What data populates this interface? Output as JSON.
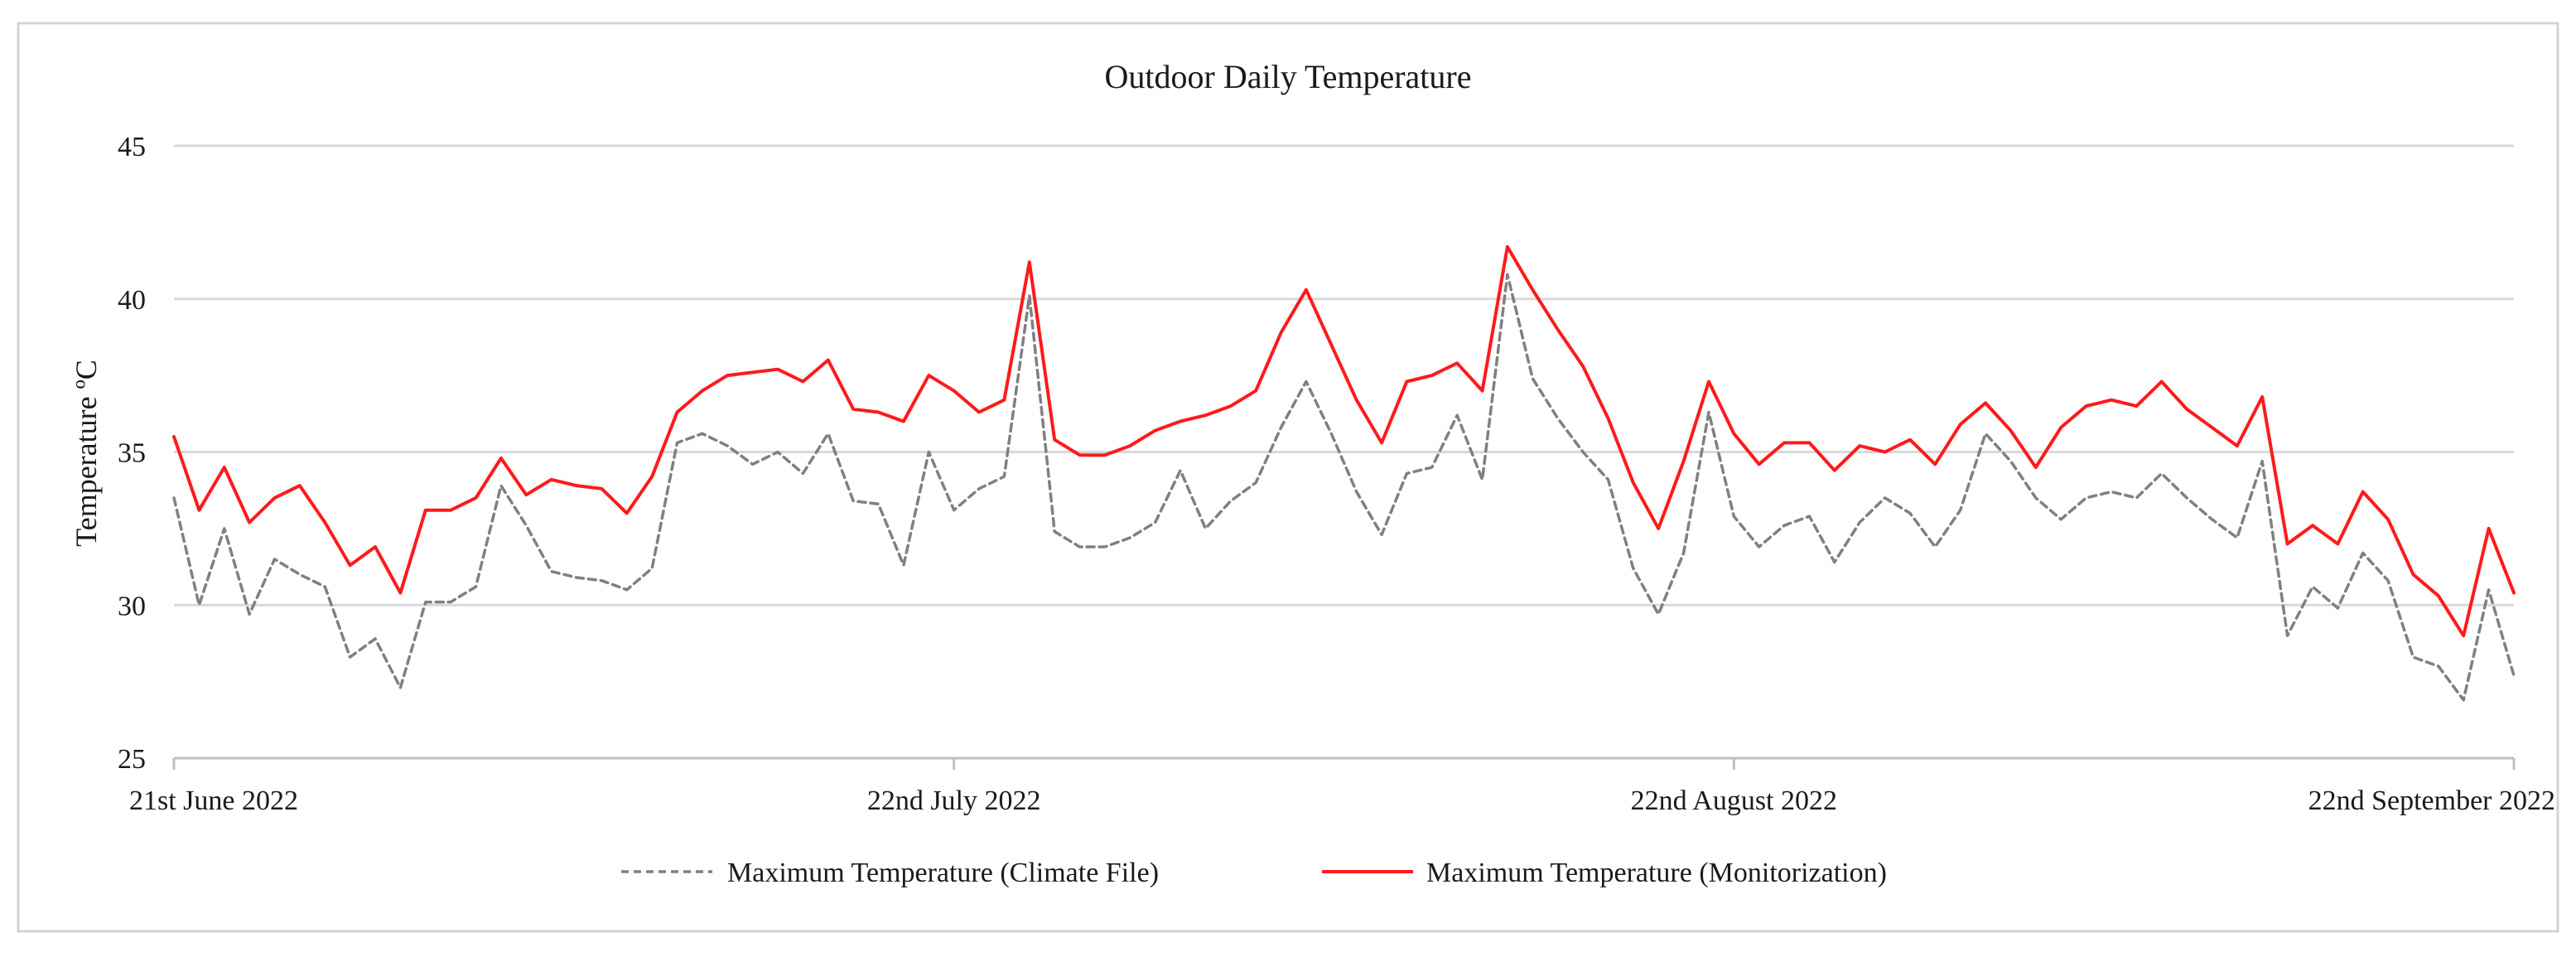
{
  "chart_data": {
    "type": "line",
    "title": "Outdoor Daily Temperature",
    "xlabel": "",
    "ylabel": "Temperature  ºC",
    "ylim": [
      25,
      45
    ],
    "yticks": [
      25,
      30,
      35,
      40,
      45
    ],
    "grid": true,
    "legend_position": "bottom",
    "x_start_day": 0,
    "x_end_day": 93,
    "x_ticks": [
      {
        "day": 0,
        "label": "21st June 2022"
      },
      {
        "day": 31,
        "label": "22nd July 2022"
      },
      {
        "day": 62,
        "label": "22nd August 2022"
      },
      {
        "day": 93,
        "label": "22nd September 2022"
      }
    ],
    "series": [
      {
        "name": "Maximum Temperature (Climate File)",
        "color": "#808080",
        "style": "dashed",
        "values": [
          33.5,
          30.0,
          32.5,
          29.7,
          31.5,
          31.0,
          30.6,
          28.3,
          28.9,
          27.3,
          30.1,
          30.1,
          30.6,
          33.9,
          32.6,
          31.1,
          30.9,
          30.8,
          30.5,
          31.2,
          35.3,
          35.6,
          35.2,
          34.6,
          35.0,
          34.3,
          35.6,
          33.4,
          33.3,
          31.3,
          35.0,
          33.1,
          33.8,
          34.2,
          40.1,
          32.4,
          31.9,
          31.9,
          32.2,
          32.7,
          34.4,
          32.5,
          33.4,
          34.0,
          35.8,
          37.3,
          35.6,
          33.7,
          32.3,
          34.3,
          34.5,
          36.2,
          34.1,
          40.8,
          37.4,
          36.1,
          35.0,
          34.1,
          31.2,
          29.7,
          31.7,
          36.3,
          32.9,
          31.9,
          32.6,
          32.9,
          31.4,
          32.7,
          33.5,
          33.0,
          31.9,
          33.1,
          35.6,
          34.7,
          33.5,
          32.8,
          33.5,
          33.7,
          33.5,
          34.3,
          33.5,
          32.8,
          32.2,
          34.7,
          29.0,
          30.6,
          29.9,
          31.7,
          30.8,
          28.3,
          28.0,
          26.9,
          30.5,
          27.7
        ]
      },
      {
        "name": "Maximum Temperature (Monitorization)",
        "color": "#ff1a1a",
        "style": "solid",
        "values": [
          35.5,
          33.1,
          34.5,
          32.7,
          33.5,
          33.9,
          32.7,
          31.3,
          31.9,
          30.4,
          33.1,
          33.1,
          33.5,
          34.8,
          33.6,
          34.1,
          33.9,
          33.8,
          33.0,
          34.2,
          36.3,
          37.0,
          37.5,
          37.6,
          37.7,
          37.3,
          38.0,
          36.4,
          36.3,
          36.0,
          37.5,
          37.0,
          36.3,
          36.7,
          41.2,
          35.4,
          34.9,
          34.9,
          35.2,
          35.7,
          36.0,
          36.2,
          36.5,
          37.0,
          38.9,
          40.3,
          38.5,
          36.7,
          35.3,
          37.3,
          37.5,
          37.9,
          37.0,
          41.7,
          40.3,
          39.0,
          37.8,
          36.1,
          34.0,
          32.5,
          34.7,
          37.3,
          35.6,
          34.6,
          35.3,
          35.3,
          34.4,
          35.2,
          35.0,
          35.4,
          34.6,
          35.9,
          36.6,
          35.7,
          34.5,
          35.8,
          36.5,
          36.7,
          36.5,
          37.3,
          36.4,
          35.8,
          35.2,
          36.8,
          32.0,
          32.6,
          32.0,
          33.7,
          32.8,
          31.0,
          30.3,
          29.0,
          32.5,
          30.4
        ]
      }
    ]
  }
}
